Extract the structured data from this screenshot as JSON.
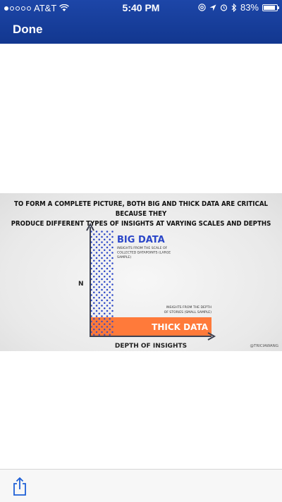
{
  "status_bar": {
    "carrier": "AT&T",
    "time": "5:40 PM",
    "battery": "83%",
    "signal_bars": 1,
    "icons": [
      "wifi-icon",
      "at-icon",
      "location-icon",
      "alarm-icon",
      "bluetooth-icon"
    ]
  },
  "nav": {
    "done_label": "Done"
  },
  "image": {
    "headline_line1": "TO FORM A COMPLETE PICTURE, BOTH BIG AND THICK DATA ARE CRITICAL BECAUSE THEY",
    "headline_line2": "PRODUCE DIFFERENT TYPES OF INSIGHTS AT VARYING SCALES AND DEPTHS",
    "y_label": "N",
    "x_label": "DEPTH OF INSIGHTS",
    "big_data_title": "BIG DATA",
    "big_data_desc": [
      "INSIGHTS FROM THE SCALE OF",
      "COLLECTED DATAPOINTS (LARGE",
      "SAMPLE)"
    ],
    "thick_data_title": "THICK DATA",
    "thick_data_desc": [
      "INSIGHTS FROM THE DEPTH",
      "OF STORIES (SMALL SAMPLE)"
    ],
    "credit": "@TRICIAWANG",
    "colors": {
      "big_data": "#2a46c8",
      "thick_data": "#ff7a3a",
      "axis": "#3d4150"
    }
  },
  "toolbar": {
    "share_icon": "share-icon"
  }
}
